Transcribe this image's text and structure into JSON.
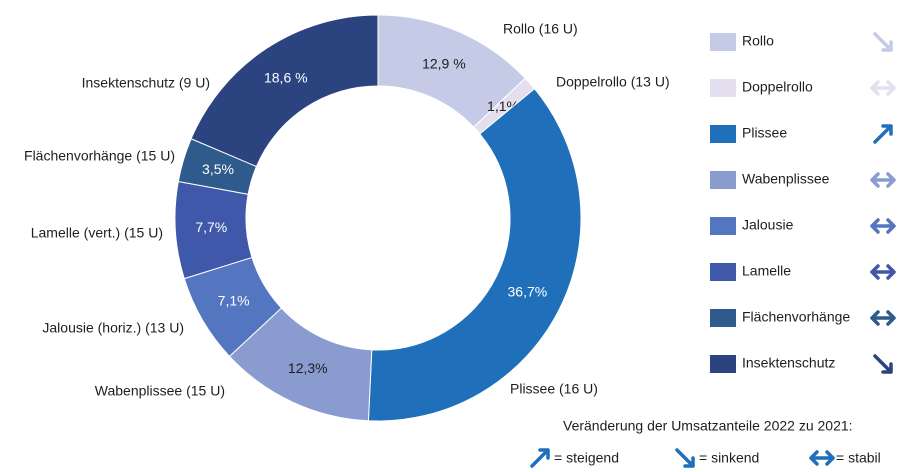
{
  "chart_data": {
    "type": "pie",
    "donut": true,
    "labels": [
      "Rollo (16 U)",
      "Doppelrollo (13 U)",
      "Plissee (16 U)",
      "Wabenplissee (15 U)",
      "Jalousie (horiz.) (13 U)",
      "Lamelle (vert.) (15 U)",
      "Flächenvorhänge (15 U)",
      "Insektenschutz (9 U)"
    ],
    "values": [
      12.9,
      1.1,
      36.7,
      12.3,
      7.1,
      7.7,
      3.5,
      18.6
    ],
    "value_labels": [
      "12,9 %",
      "1,1%",
      "36,7%",
      "12,3%",
      "7,1%",
      "7,7%",
      "3,5%",
      "18,6 %"
    ],
    "colors": [
      "#c5cae6",
      "#e4dfee",
      "#1f6fba",
      "#8a9bd0",
      "#5475c0",
      "#4058aa",
      "#2e5a8c",
      "#2b4480"
    ],
    "legend": {
      "names": [
        "Rollo",
        "Doppelrollo",
        "Plissee",
        "Wabenplissee",
        "Jalousie",
        "Lamelle",
        "Flächenvorhänge",
        "Insektenschutz"
      ],
      "trends": [
        "down",
        "stable",
        "up",
        "stable",
        "stable",
        "stable",
        "stable",
        "down"
      ]
    },
    "trend_key": {
      "title": "Veränderung der Umsatzanteile 2022 zu 2021:",
      "trends": [
        "up",
        "down",
        "stable"
      ],
      "labels": [
        "= steigend",
        "= sinkend",
        "= stabil"
      ]
    }
  }
}
